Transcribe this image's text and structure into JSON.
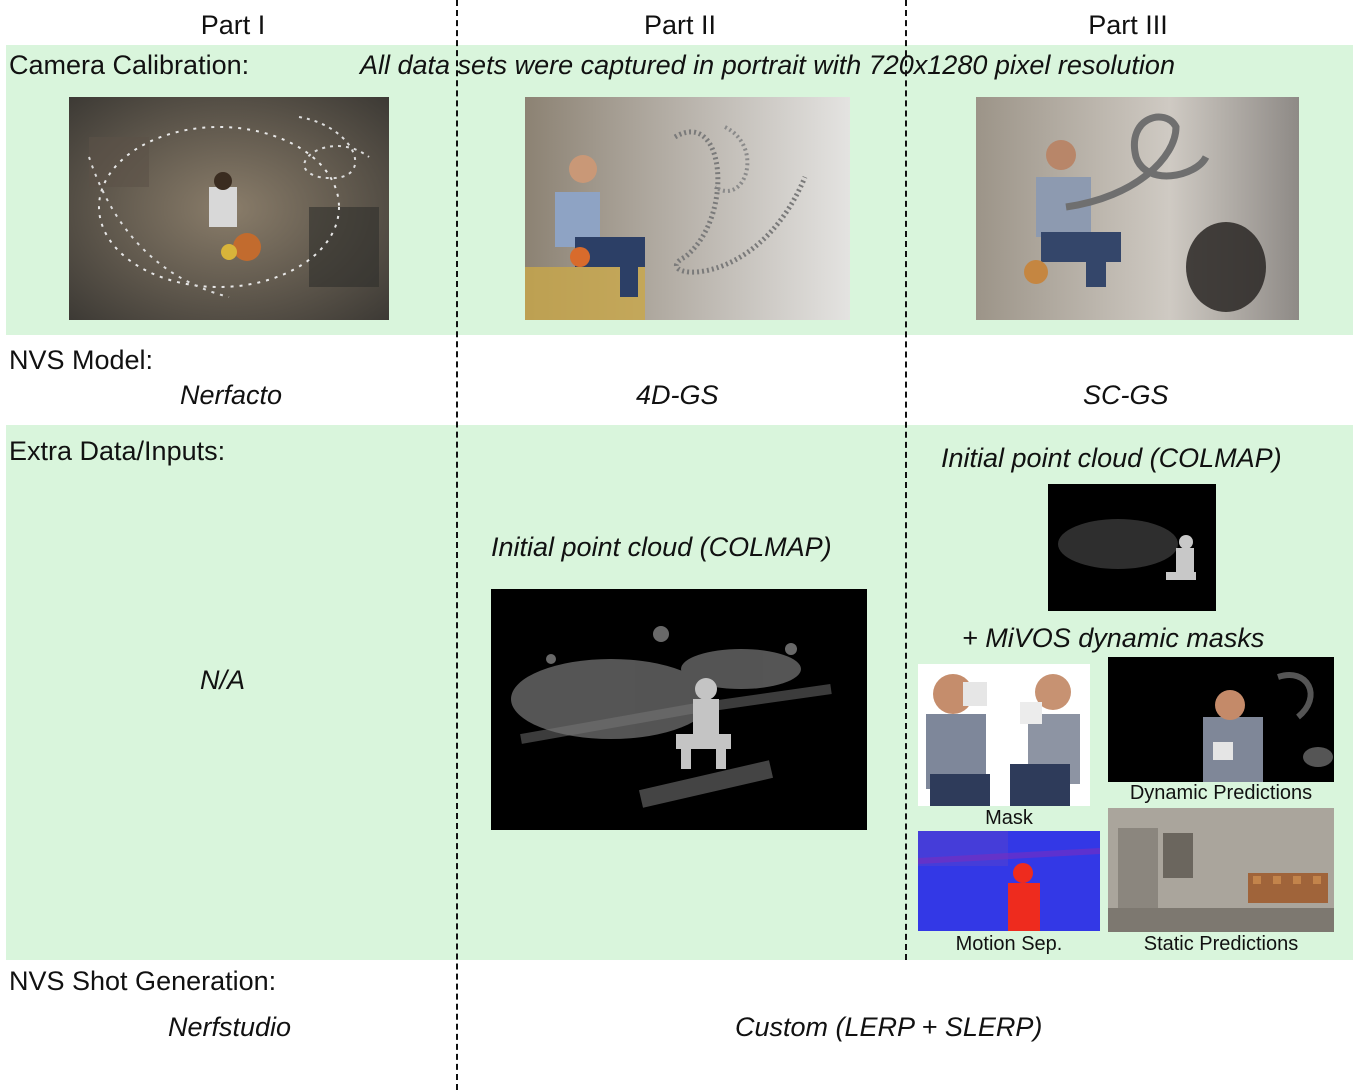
{
  "columns": {
    "part1": "Part I",
    "part2": "Part II",
    "part3": "Part III"
  },
  "camera_calibration": {
    "label": "Camera Calibration:",
    "note": "All data sets were captured in portrait with 720x1280 pixel resolution"
  },
  "nvs_model": {
    "label": "NVS Model:",
    "part1": "Nerfacto",
    "part2": "4D-GS",
    "part3": "SC-GS"
  },
  "extra_data": {
    "label": "Extra Data/Inputs:",
    "part1": "N/A",
    "part2_title": "Initial point cloud (COLMAP)",
    "part3_title": "Initial point cloud (COLMAP)",
    "part3_masks_title": "+ MiVOS dynamic masks",
    "captions": {
      "mask": "Mask",
      "dynamic": "Dynamic Predictions",
      "motion": "Motion Sep.",
      "static": "Static Predictions"
    }
  },
  "shot_generation": {
    "label": "NVS Shot Generation:",
    "part1": "Nerfstudio",
    "part23": "Custom (LERP + SLERP)"
  },
  "colors": {
    "band": "#d9f5dc",
    "divider": "#111111"
  }
}
